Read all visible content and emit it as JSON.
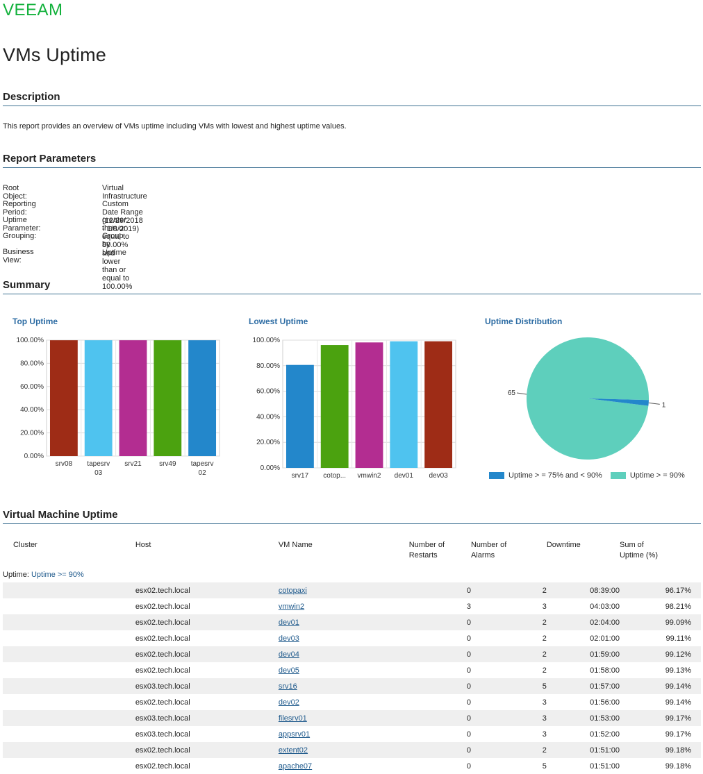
{
  "brand": {
    "name": "VEEAM",
    "color": "#13b13c"
  },
  "page_title": "VMs Uptime",
  "sections": {
    "description": "Description",
    "parameters": "Report Parameters",
    "summary": "Summary",
    "vm_uptime": "Virtual Machine Uptime"
  },
  "description_text": "This report provides an overview of VMs uptime including VMs with lowest and highest uptime values.",
  "parameters": [
    {
      "label": "Root Object:",
      "value": "Virtual Infrastructure"
    },
    {
      "label": "Reporting Period:",
      "value": "Custom Date Range (12/29/2018 - 1/8/2019)"
    },
    {
      "label": "Uptime Parameter:",
      "value": "greater than or equal to 80.00% and lower than or equal to 100.00%"
    },
    {
      "label": "Grouping:",
      "value": "Group by Uptime"
    },
    {
      "label": "Business View:",
      "value": ""
    }
  ],
  "chart_data": [
    {
      "type": "bar",
      "title": "Top Uptime",
      "categories": [
        "srv08",
        "tapesrv 03",
        "srv21",
        "srv49",
        "tapesrv 02"
      ],
      "category_lines": [
        [
          "srv08"
        ],
        [
          "tapesrv",
          "03"
        ],
        [
          "srv21"
        ],
        [
          "srv49"
        ],
        [
          "tapesrv",
          "02"
        ]
      ],
      "values": [
        99.9,
        99.9,
        99.9,
        99.9,
        99.9
      ],
      "colors": [
        "#9e2c16",
        "#4fc3ef",
        "#b32d91",
        "#4ba20f",
        "#2387cb"
      ],
      "ylim": [
        0,
        100
      ],
      "yticks": [
        "0.00%",
        "20.00%",
        "40.00%",
        "60.00%",
        "80.00%",
        "100.00%"
      ],
      "xlabel": "",
      "ylabel": "",
      "grid": true
    },
    {
      "type": "bar",
      "title": "Lowest Uptime",
      "categories": [
        "srv17",
        "cotop...",
        "vmwin2",
        "dev01",
        "dev03"
      ],
      "category_lines": [
        [
          "srv17"
        ],
        [
          "cotop..."
        ],
        [
          "vmwin2"
        ],
        [
          "dev01"
        ],
        [
          "dev03"
        ]
      ],
      "values": [
        80.6,
        96.17,
        98.21,
        99.09,
        99.11
      ],
      "colors": [
        "#2387cb",
        "#4ba20f",
        "#b32d91",
        "#4fc3ef",
        "#9e2c16"
      ],
      "ylim": [
        0,
        100
      ],
      "yticks": [
        "0.00%",
        "20.00%",
        "40.00%",
        "60.00%",
        "80.00%",
        "100.00%"
      ],
      "xlabel": "",
      "ylabel": "",
      "grid": true
    },
    {
      "type": "pie",
      "title": "Uptime Distribution",
      "slices": [
        {
          "name": "Uptime > = 75% and < 90%",
          "value": 1,
          "label": "1",
          "color": "#2387cb"
        },
        {
          "name": "Uptime > = 90%",
          "value": 65,
          "label": "65",
          "color": "#5ecfbc"
        }
      ],
      "legend": "bottom"
    }
  ],
  "table": {
    "headers": {
      "cluster": "Cluster",
      "host": "Host",
      "vm": "VM Name",
      "restarts_1": "Number of",
      "restarts_2": "Restarts",
      "alarms_1": "Number of",
      "alarms_2": "Alarms",
      "downtime": "Downtime",
      "sum_1": "Sum of",
      "sum_2": "Uptime (%)"
    },
    "group_label": "Uptime:",
    "group_value": "Uptime >= 90%",
    "rows": [
      {
        "cluster": "",
        "host": "esx02.tech.local",
        "vm": "cotopaxi",
        "restarts": "0",
        "alarms": "2",
        "downtime": "08:39:00",
        "sum": "96.17%"
      },
      {
        "cluster": "",
        "host": "esx02.tech.local",
        "vm": "vmwin2",
        "restarts": "3",
        "alarms": "3",
        "downtime": "04:03:00",
        "sum": "98.21%"
      },
      {
        "cluster": "",
        "host": "esx02.tech.local",
        "vm": "dev01",
        "restarts": "0",
        "alarms": "2",
        "downtime": "02:04:00",
        "sum": "99.09%"
      },
      {
        "cluster": "",
        "host": "esx02.tech.local",
        "vm": "dev03",
        "restarts": "0",
        "alarms": "2",
        "downtime": "02:01:00",
        "sum": "99.11%"
      },
      {
        "cluster": "",
        "host": "esx02.tech.local",
        "vm": "dev04",
        "restarts": "0",
        "alarms": "2",
        "downtime": "01:59:00",
        "sum": "99.12%"
      },
      {
        "cluster": "",
        "host": "esx02.tech.local",
        "vm": "dev05",
        "restarts": "0",
        "alarms": "2",
        "downtime": "01:58:00",
        "sum": "99.13%"
      },
      {
        "cluster": "",
        "host": "esx03.tech.local",
        "vm": "srv16",
        "restarts": "0",
        "alarms": "5",
        "downtime": "01:57:00",
        "sum": "99.14%"
      },
      {
        "cluster": "",
        "host": "esx02.tech.local",
        "vm": "dev02",
        "restarts": "0",
        "alarms": "3",
        "downtime": "01:56:00",
        "sum": "99.14%"
      },
      {
        "cluster": "",
        "host": "esx03.tech.local",
        "vm": "filesrv01",
        "restarts": "0",
        "alarms": "3",
        "downtime": "01:53:00",
        "sum": "99.17%"
      },
      {
        "cluster": "",
        "host": "esx03.tech.local",
        "vm": "appsrv01",
        "restarts": "0",
        "alarms": "3",
        "downtime": "01:52:00",
        "sum": "99.17%"
      },
      {
        "cluster": "",
        "host": "esx02.tech.local",
        "vm": "extent02",
        "restarts": "0",
        "alarms": "2",
        "downtime": "01:51:00",
        "sum": "99.18%"
      },
      {
        "cluster": "",
        "host": "esx02.tech.local",
        "vm": "apache07",
        "restarts": "0",
        "alarms": "5",
        "downtime": "01:51:00",
        "sum": "99.18%"
      }
    ]
  }
}
